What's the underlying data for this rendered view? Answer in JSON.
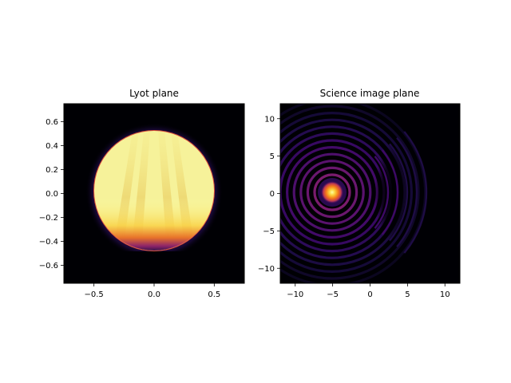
{
  "figure": {
    "background": "#ffffff",
    "colormap": "inferno"
  },
  "chart_data": [
    {
      "type": "heatmap",
      "title": "Lyot plane",
      "xlabel": "",
      "ylabel": "",
      "xlim": [
        -0.75,
        0.75
      ],
      "ylim": [
        -0.75,
        0.75
      ],
      "xticks": [
        -0.5,
        0.0,
        0.5
      ],
      "xtick_labels": [
        "−0.5",
        "0.0",
        "0.5"
      ],
      "yticks": [
        0.6,
        0.4,
        0.2,
        0.0,
        -0.2,
        -0.4,
        -0.6
      ],
      "ytick_labels": [
        "0.6",
        "0.4",
        "0.2",
        "0.0",
        "−0.2",
        "−0.4",
        "−0.6"
      ],
      "pupil": {
        "center": [
          0.0,
          0.02
        ],
        "radius": 0.5,
        "bottom_edge": -0.49,
        "level": 0.95,
        "rim_level": 0.5,
        "struts": 4
      },
      "grid": false
    },
    {
      "type": "heatmap",
      "title": "Science image plane",
      "xlabel": "",
      "ylabel": "",
      "xlim": [
        -12,
        12
      ],
      "ylim": [
        -12,
        12
      ],
      "xticks": [
        -10,
        -5,
        0,
        5,
        10
      ],
      "xtick_labels": [
        "−10",
        "−5",
        "0",
        "5",
        "10"
      ],
      "yticks": [
        10,
        5,
        0,
        -5,
        -10
      ],
      "ytick_labels": [
        "10",
        "5",
        "0",
        "−5",
        "−10"
      ],
      "psf": {
        "center": [
          -5,
          0
        ],
        "peak_level": 1.0,
        "ring_spacing": 1.6,
        "dark_hole_center_x": 3.5
      },
      "grid": false
    }
  ]
}
